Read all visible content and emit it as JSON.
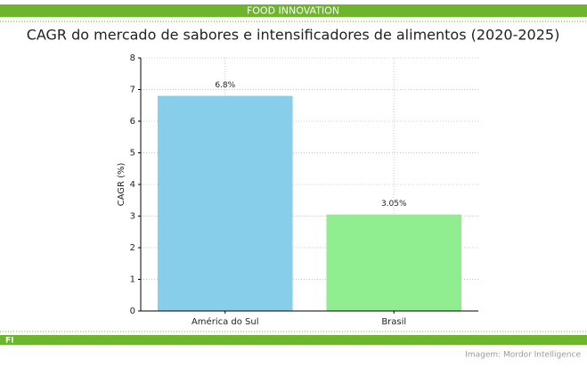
{
  "header": "FOOD INNOVATION",
  "chart_data": {
    "type": "bar",
    "title": "CAGR do mercado de sabores e intensificadores de alimentos (2020-2025)",
    "ylabel": "CAGR (%)",
    "categories": [
      "América do Sul",
      "Brasil"
    ],
    "values": [
      6.8,
      3.05
    ],
    "value_labels": [
      "6.8%",
      "3.05%"
    ],
    "colors": [
      "#87ceeb",
      "#90ee90"
    ],
    "ylim": [
      0,
      8
    ],
    "yticks": [
      0,
      1,
      2,
      3,
      4,
      5,
      6,
      7,
      8
    ],
    "grid": true
  },
  "footer": {
    "logo": "FI",
    "credit": "Imagem: Mordor Intelligence"
  }
}
